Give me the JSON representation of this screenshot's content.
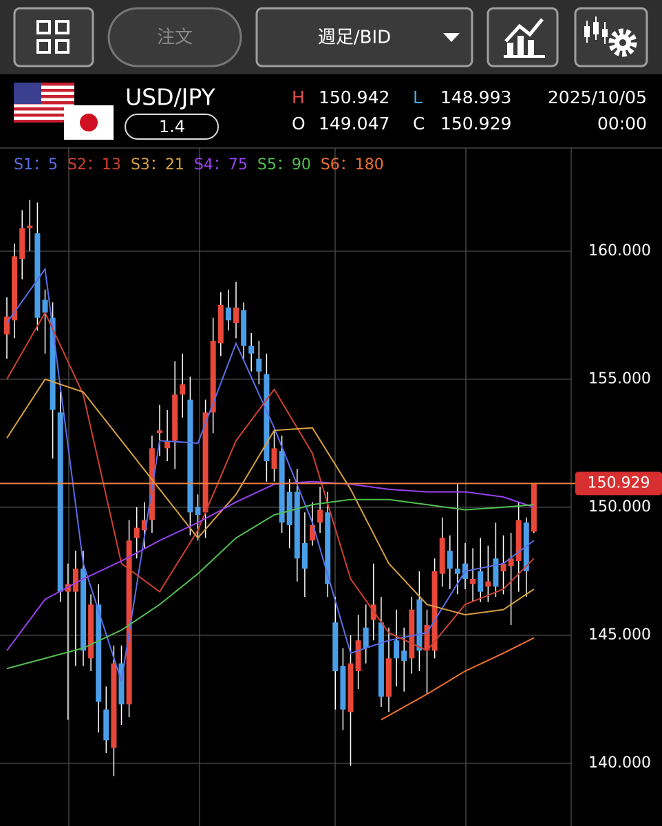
{
  "toolbar": {
    "order": "注文",
    "mode": "週足/BID"
  },
  "quote": {
    "symbol": "USD/JPY",
    "spread": "1.4",
    "high_label": "H",
    "high": "150.942",
    "low_label": "L",
    "low": "148.993",
    "open_label": "O",
    "open": "149.047",
    "close_label": "C",
    "close": "150.929",
    "date": "2025/10/05",
    "time": "00:00"
  },
  "chart_data": {
    "type": "candlestick",
    "up_color": "#e8483a",
    "down_color": "#4a9ee8",
    "ylim": [
      137.55,
      164.03
    ],
    "yticks": [
      {
        "value": 140,
        "label": "140.000"
      },
      {
        "value": 145,
        "label": "145.000"
      },
      {
        "value": 150,
        "label": "150.000"
      },
      {
        "value": 155,
        "label": "155.000"
      },
      {
        "value": 160,
        "label": "160.000"
      }
    ],
    "grid": true,
    "last": {
      "value": 150.929,
      "label": "150.929",
      "color": "#f08040"
    },
    "ohlc": [
      [
        156.75,
        158.2,
        155.8,
        157.45
      ],
      [
        157.3,
        160.3,
        156.6,
        159.8
      ],
      [
        159.7,
        161.6,
        158.9,
        160.9
      ],
      [
        160.9,
        162.0,
        160.0,
        161.0
      ],
      [
        160.7,
        161.9,
        156.9,
        157.4
      ],
      [
        158.1,
        158.5,
        156.0,
        157.6
      ],
      [
        157.4,
        158.0,
        151.9,
        153.8
      ],
      [
        153.7,
        154.5,
        146.3,
        146.7
      ],
      [
        146.7,
        147.8,
        141.7,
        147.0
      ],
      [
        146.7,
        148.3,
        143.8,
        147.6
      ],
      [
        147.6,
        148.3,
        143.8,
        144.4
      ],
      [
        144.1,
        146.6,
        143.6,
        146.2
      ],
      [
        146.2,
        147.0,
        141.2,
        142.4
      ],
      [
        142.1,
        143.0,
        140.4,
        140.9
      ],
      [
        140.6,
        144.6,
        139.5,
        143.9
      ],
      [
        143.9,
        144.6,
        141.5,
        142.3
      ],
      [
        142.3,
        149.5,
        141.8,
        148.7
      ],
      [
        148.8,
        150.0,
        148.0,
        149.2
      ],
      [
        149.1,
        150.2,
        148.4,
        149.5
      ],
      [
        149.5,
        152.8,
        149.0,
        152.3
      ],
      [
        152.9,
        154.0,
        152.0,
        153.0
      ],
      [
        152.3,
        153.8,
        151.8,
        152.6
      ],
      [
        152.6,
        155.7,
        151.5,
        154.4
      ],
      [
        154.4,
        156.0,
        153.5,
        154.8
      ],
      [
        154.2,
        155.1,
        148.9,
        149.8
      ],
      [
        150.0,
        150.5,
        148.7,
        149.7
      ],
      [
        149.8,
        154.2,
        148.8,
        153.7
      ],
      [
        153.7,
        157.4,
        152.9,
        156.5
      ],
      [
        156.4,
        158.4,
        155.9,
        157.9
      ],
      [
        157.8,
        158.5,
        156.9,
        157.3
      ],
      [
        157.2,
        158.8,
        156.6,
        157.8
      ],
      [
        157.7,
        158.0,
        155.8,
        156.3
      ],
      [
        156.3,
        156.8,
        155.3,
        156.0
      ],
      [
        155.8,
        156.5,
        154.8,
        155.3
      ],
      [
        155.2,
        156.0,
        151.0,
        151.8
      ],
      [
        151.5,
        153.0,
        151.0,
        152.3
      ],
      [
        152.2,
        152.8,
        149.0,
        149.4
      ],
      [
        150.6,
        151.1,
        148.4,
        149.3
      ],
      [
        150.6,
        151.5,
        147.1,
        148.0
      ],
      [
        148.6,
        149.8,
        146.5,
        147.6
      ],
      [
        148.7,
        150.2,
        148.5,
        149.3
      ],
      [
        149.4,
        150.8,
        149.0,
        149.9
      ],
      [
        149.8,
        150.6,
        146.5,
        147.0
      ],
      [
        145.5,
        146.5,
        142.1,
        143.6
      ],
      [
        143.8,
        144.5,
        141.3,
        142.1
      ],
      [
        142.0,
        145.0,
        139.9,
        143.9
      ],
      [
        143.6,
        145.8,
        142.9,
        144.8
      ],
      [
        145.3,
        146.2,
        143.9,
        144.5
      ],
      [
        145.6,
        147.8,
        144.8,
        146.2
      ],
      [
        145.5,
        146.5,
        142.2,
        142.6
      ],
      [
        142.6,
        145.3,
        142.0,
        144.1
      ],
      [
        144.8,
        146.0,
        143.0,
        144.1
      ],
      [
        144.4,
        145.3,
        142.8,
        144.0
      ],
      [
        144.1,
        146.5,
        143.5,
        146.0
      ],
      [
        146.4,
        147.5,
        143.6,
        144.4
      ],
      [
        144.4,
        146.0,
        142.7,
        145.4
      ],
      [
        144.4,
        148.0,
        144.1,
        147.5
      ],
      [
        147.4,
        149.6,
        146.9,
        148.8
      ],
      [
        148.3,
        148.9,
        146.8,
        147.6
      ],
      [
        147.6,
        150.9,
        146.6,
        147.4
      ],
      [
        147.8,
        148.6,
        146.8,
        147.2
      ],
      [
        147.0,
        148.4,
        146.3,
        147.2
      ],
      [
        147.5,
        148.8,
        146.3,
        146.7
      ],
      [
        146.9,
        148.5,
        146.3,
        147.1
      ],
      [
        148.0,
        149.4,
        146.5,
        146.9
      ],
      [
        147.5,
        148.9,
        146.6,
        147.8
      ],
      [
        147.7,
        149.0,
        145.4,
        148.0
      ],
      [
        147.9,
        150.2,
        146.7,
        149.5
      ],
      [
        149.4,
        149.6,
        146.5,
        147.5
      ],
      [
        149.047,
        150.942,
        148.993,
        150.929
      ]
    ],
    "series": [
      {
        "name": "S1：5",
        "color": "#5a6ee8",
        "x": [
          0,
          5,
          10,
          15,
          20,
          25,
          30,
          35,
          40,
          45,
          50,
          55,
          60,
          65,
          69
        ],
        "values": [
          157.2,
          159.3,
          147.8,
          143.2,
          152.6,
          152.5,
          156.4,
          153.1,
          149.4,
          144.3,
          144.8,
          145.1,
          147.5,
          147.8,
          148.7
        ]
      },
      {
        "name": "S2：13",
        "color": "#d04030",
        "x": [
          0,
          5,
          10,
          15,
          20,
          25,
          30,
          35,
          40,
          45,
          50,
          55,
          60,
          65,
          69
        ],
        "values": [
          155.0,
          157.6,
          154.4,
          147.8,
          146.7,
          149.1,
          152.6,
          154.6,
          152.1,
          147.2,
          145.1,
          144.4,
          146.2,
          146.8,
          148.0
        ]
      },
      {
        "name": "S3：21",
        "color": "#d8a040",
        "x": [
          0,
          5,
          10,
          15,
          20,
          25,
          30,
          35,
          40,
          45,
          50,
          55,
          60,
          65,
          69
        ],
        "values": [
          152.7,
          155.0,
          154.5,
          152.6,
          150.7,
          148.8,
          150.5,
          153.0,
          153.1,
          150.7,
          147.8,
          146.2,
          145.8,
          146.0,
          146.8
        ]
      },
      {
        "name": "S4：75",
        "color": "#9a40f0",
        "x": [
          0,
          5,
          10,
          15,
          20,
          25,
          30,
          35,
          40,
          45,
          50,
          55,
          60,
          65,
          69
        ],
        "values": [
          144.4,
          146.4,
          147.2,
          147.9,
          148.7,
          149.4,
          150.2,
          150.9,
          151.0,
          150.9,
          150.7,
          150.6,
          150.6,
          150.4,
          150.0
        ]
      },
      {
        "name": "S5：90",
        "color": "#50c050",
        "x": [
          0,
          5,
          10,
          15,
          20,
          25,
          30,
          35,
          40,
          45,
          50,
          55,
          60,
          65,
          69
        ],
        "values": [
          143.7,
          144.1,
          144.5,
          145.2,
          146.2,
          147.4,
          148.8,
          149.7,
          150.1,
          150.3,
          150.3,
          150.1,
          149.9,
          150.0,
          150.1
        ]
      },
      {
        "name": "S6：180",
        "color": "#f07030",
        "x": [
          49,
          55,
          60,
          65,
          69
        ],
        "values": [
          141.7,
          142.7,
          143.6,
          144.3,
          144.9
        ]
      }
    ]
  }
}
